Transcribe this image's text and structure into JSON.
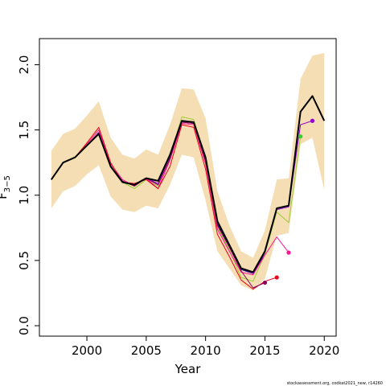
{
  "chart_data": {
    "type": "line",
    "title": "",
    "xlabel": "Year",
    "ylabel": "F",
    "ylabel_subscript": "3−5",
    "xlim": [
      1996,
      2021
    ],
    "ylim": [
      -0.08,
      2.2
    ],
    "x_ticks": [
      2000,
      2005,
      2010,
      2015,
      2020
    ],
    "x_tick_labels": [
      "2000",
      "2005",
      "2010",
      "2015",
      "2020"
    ],
    "y_ticks": [
      0,
      0.5,
      1,
      1.5,
      2
    ],
    "y_tick_labels": [
      "0.0",
      "0.5",
      "1.0",
      "1.5",
      "2.0"
    ],
    "grid": false,
    "footer": "stockassessment.org, codkat2021_new, r14260",
    "band": {
      "x": [
        1997,
        1998,
        1999,
        2000,
        2001,
        2002,
        2003,
        2004,
        2005,
        2006,
        2007,
        2008,
        2009,
        2010,
        2011,
        2012,
        2013,
        2014,
        2015,
        2016,
        2017,
        2018,
        2019,
        2020
      ],
      "upper": [
        1.34,
        1.47,
        1.51,
        1.61,
        1.72,
        1.44,
        1.31,
        1.28,
        1.35,
        1.31,
        1.54,
        1.82,
        1.81,
        1.59,
        1.03,
        0.77,
        0.57,
        0.52,
        0.73,
        1.12,
        1.13,
        1.89,
        2.07,
        2.09
      ],
      "lower": [
        0.9,
        1.03,
        1.07,
        1.16,
        1.23,
        0.99,
        0.89,
        0.87,
        0.92,
        0.9,
        1.08,
        1.31,
        1.29,
        0.96,
        0.57,
        0.44,
        0.31,
        0.27,
        0.36,
        0.69,
        0.71,
        1.39,
        1.44,
        1.04
      ],
      "color": "#f5deb3"
    },
    "series": [
      {
        "color": "#00008b",
        "x": [
          1997,
          1998,
          1999,
          2000,
          2001,
          2002,
          2003,
          2004,
          2005,
          2006,
          2007,
          2008,
          2009,
          2010,
          2011,
          2012,
          2013,
          2014,
          2015
        ],
        "values": [
          1.12,
          1.25,
          1.29,
          1.38,
          1.48,
          1.22,
          1.1,
          1.08,
          1.13,
          1.08,
          1.29,
          1.56,
          1.55,
          1.27,
          0.78,
          0.61,
          0.43,
          0.4,
          0.55
        ]
      },
      {
        "color": "#9acd32",
        "x": [
          1997,
          1998,
          1999,
          2000,
          2001,
          2002,
          2003,
          2004,
          2005,
          2006,
          2007,
          2008,
          2009,
          2010,
          2011,
          2012,
          2013,
          2014,
          2015,
          2016,
          2017,
          2018
        ],
        "values": [
          1.12,
          1.25,
          1.29,
          1.38,
          1.48,
          1.22,
          1.1,
          1.05,
          1.12,
          1.07,
          1.3,
          1.6,
          1.58,
          1.27,
          0.76,
          0.58,
          0.37,
          0.34,
          0.55,
          0.87,
          0.79,
          1.45
        ]
      },
      {
        "color": "#ff1493",
        "x": [
          1997,
          1998,
          1999,
          2000,
          2001,
          2002,
          2003,
          2004,
          2005,
          2006,
          2007,
          2008,
          2009,
          2010,
          2011,
          2012,
          2013,
          2014,
          2015,
          2016,
          2017
        ],
        "values": [
          1.12,
          1.25,
          1.29,
          1.39,
          1.5,
          1.24,
          1.12,
          1.07,
          1.13,
          1.05,
          1.27,
          1.55,
          1.54,
          1.24,
          0.74,
          0.57,
          0.41,
          0.39,
          0.54,
          0.68,
          0.56
        ]
      },
      {
        "color": "#e8001c",
        "x": [
          1997,
          1998,
          1999,
          2000,
          2001,
          2002,
          2003,
          2004,
          2005,
          2006,
          2007,
          2008,
          2009,
          2010,
          2011,
          2012,
          2013,
          2014,
          2015,
          2016
        ],
        "values": [
          1.12,
          1.25,
          1.29,
          1.4,
          1.52,
          1.25,
          1.1,
          1.09,
          1.12,
          1.05,
          1.22,
          1.54,
          1.52,
          1.2,
          0.7,
          0.53,
          0.35,
          0.28,
          0.34,
          0.37
        ]
      },
      {
        "color": "#8b005a",
        "x": [
          1997,
          1998,
          1999,
          2000,
          2001,
          2002,
          2003,
          2004,
          2005,
          2006,
          2007,
          2008,
          2009,
          2010,
          2011,
          2012,
          2013,
          2014,
          2015
        ],
        "values": [
          1.12,
          1.25,
          1.29,
          1.38,
          1.48,
          1.22,
          1.11,
          1.07,
          1.13,
          1.08,
          1.28,
          1.56,
          1.55,
          1.26,
          0.77,
          0.6,
          0.42,
          0.29,
          0.33
        ]
      },
      {
        "color": "#9400d3",
        "x": [
          1997,
          1998,
          1999,
          2000,
          2001,
          2002,
          2003,
          2004,
          2005,
          2006,
          2007,
          2008,
          2009,
          2010,
          2011,
          2012,
          2013,
          2014,
          2015,
          2016,
          2017,
          2018,
          2019
        ],
        "values": [
          1.12,
          1.25,
          1.29,
          1.38,
          1.48,
          1.22,
          1.1,
          1.08,
          1.13,
          1.09,
          1.3,
          1.57,
          1.56,
          1.28,
          0.8,
          0.62,
          0.44,
          0.4,
          0.56,
          0.89,
          0.91,
          1.54,
          1.57
        ]
      },
      {
        "color": "#000000",
        "width": 2,
        "x": [
          1997,
          1998,
          1999,
          2000,
          2001,
          2002,
          2003,
          2004,
          2005,
          2006,
          2007,
          2008,
          2009,
          2010,
          2011,
          2012,
          2013,
          2014,
          2015,
          2016,
          2017,
          2018,
          2019,
          2020
        ],
        "values": [
          1.12,
          1.25,
          1.29,
          1.38,
          1.47,
          1.22,
          1.1,
          1.08,
          1.13,
          1.11,
          1.31,
          1.57,
          1.56,
          1.29,
          0.8,
          0.62,
          0.44,
          0.41,
          0.57,
          0.9,
          0.92,
          1.64,
          1.76,
          1.57
        ]
      }
    ],
    "end_points": [
      {
        "x": 2015,
        "y": 0.33,
        "color": "#8b005a"
      },
      {
        "x": 2016,
        "y": 0.37,
        "color": "#e8001c"
      },
      {
        "x": 2017,
        "y": 0.56,
        "color": "#ff1493"
      },
      {
        "x": 2018,
        "y": 1.45,
        "color": "#32cd32"
      },
      {
        "x": 2019,
        "y": 1.57,
        "color": "#9400d3"
      }
    ]
  }
}
